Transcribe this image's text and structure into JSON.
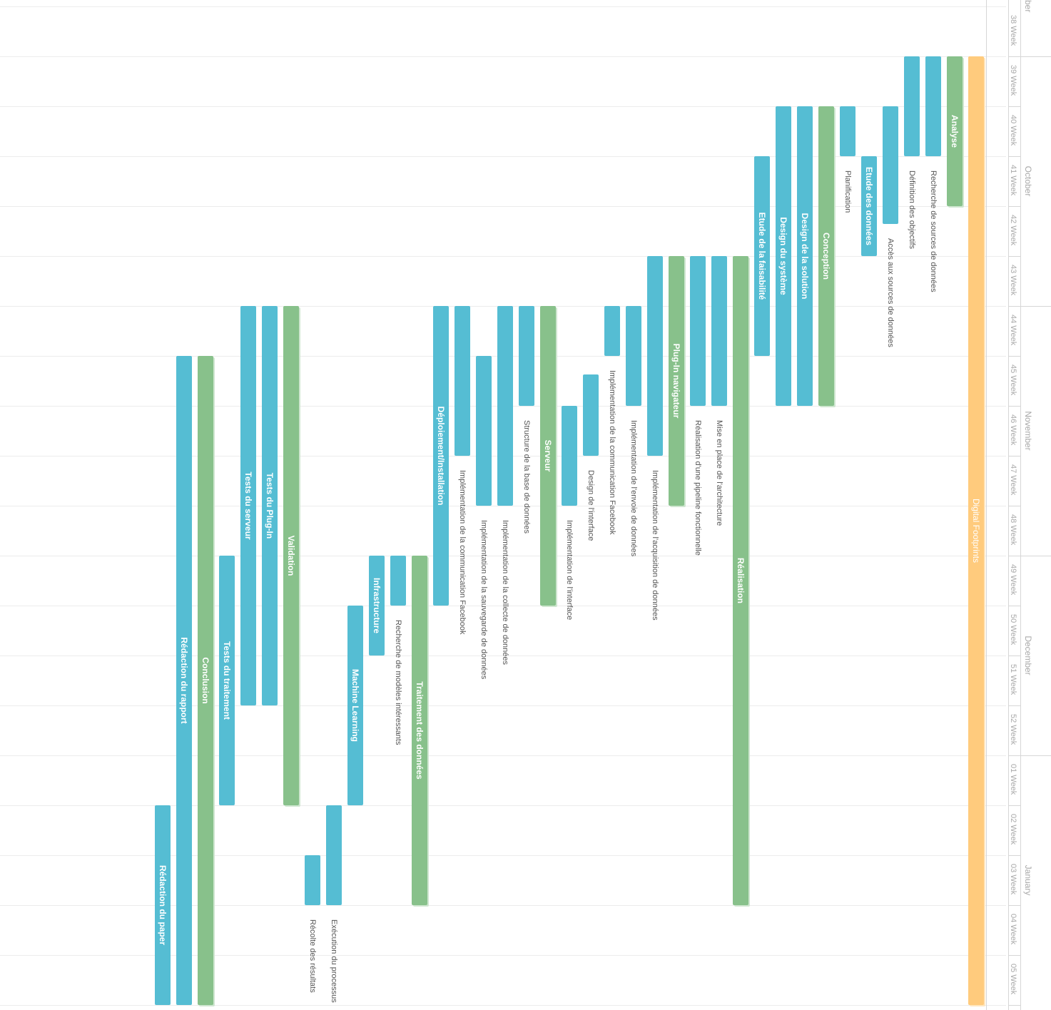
{
  "chart_data": {
    "type": "gantt",
    "project": {
      "label": "Digital Footprints",
      "start": 1,
      "end": 20
    },
    "weeks": [
      "38 Week",
      "39 Week",
      "40 Week",
      "41 Week",
      "42 Week",
      "43 Week",
      "44 Week",
      "45 Week",
      "46 Week",
      "47 Week",
      "48 Week",
      "49 Week",
      "50 Week",
      "51 Week",
      "52 Week",
      "01 Week",
      "02 Week",
      "03 Week",
      "04 Week",
      "05 Week"
    ],
    "months": [
      {
        "label": "ber",
        "start": 0,
        "end": 0.3
      },
      {
        "label": "October",
        "start": 1,
        "end": 6
      },
      {
        "label": "November",
        "start": 6,
        "end": 11
      },
      {
        "label": "December",
        "start": 11,
        "end": 15
      },
      {
        "label": "January",
        "start": 15,
        "end": 20
      }
    ],
    "tasks": [
      {
        "label": "Analyse",
        "type": "group",
        "start": 1,
        "end": 4,
        "inside": true
      },
      {
        "label": "Recherche de sources de données",
        "type": "task",
        "start": 1,
        "end": 3,
        "inside": false
      },
      {
        "label": "Définition des objectifs",
        "type": "task",
        "start": 1,
        "end": 3,
        "inside": false
      },
      {
        "label": "Accès aux sources de données",
        "type": "task",
        "start": 2,
        "end": 4.35,
        "inside": false
      },
      {
        "label": "Etude des données",
        "type": "task",
        "start": 3,
        "end": 5,
        "inside": true
      },
      {
        "label": "Planification",
        "type": "task",
        "start": 2,
        "end": 3,
        "inside": false
      },
      {
        "label": "Conception",
        "type": "group",
        "start": 2,
        "end": 8,
        "inside": true
      },
      {
        "label": "Design de la solution",
        "type": "task",
        "start": 2,
        "end": 8,
        "inside": true
      },
      {
        "label": "Design du système",
        "type": "task",
        "start": 2,
        "end": 8,
        "inside": true
      },
      {
        "label": "Etude de la faisabilité",
        "type": "task",
        "start": 3,
        "end": 7,
        "inside": true
      },
      {
        "label": "Réalisation",
        "type": "group",
        "start": 5,
        "end": 18,
        "inside": true
      },
      {
        "label": "Mise en place de l'architecture",
        "type": "task",
        "start": 5,
        "end": 8,
        "inside": false
      },
      {
        "label": "Réalisation d'une pipeline fonctionnelle",
        "type": "task",
        "start": 5,
        "end": 8,
        "inside": false
      },
      {
        "label": "Plug-In navigateur",
        "type": "group",
        "start": 5,
        "end": 10,
        "inside": true
      },
      {
        "label": "Implémentation de l'acquisition de données",
        "type": "task",
        "start": 5,
        "end": 9,
        "inside": false
      },
      {
        "label": "Implémentation de l'envoie de données",
        "type": "task",
        "start": 6,
        "end": 8,
        "inside": false
      },
      {
        "label": "Implémentation de la communication Facebook",
        "type": "task",
        "start": 6,
        "end": 7,
        "inside": false
      },
      {
        "label": "Design de l'interface",
        "type": "task",
        "start": 7.37,
        "end": 9,
        "inside": false
      },
      {
        "label": "Implémentation de l'interface",
        "type": "task",
        "start": 8,
        "end": 10,
        "inside": false
      },
      {
        "label": "Serveur",
        "type": "group",
        "start": 6,
        "end": 12,
        "inside": true
      },
      {
        "label": "Structure de la base de données",
        "type": "task",
        "start": 6,
        "end": 8,
        "inside": false
      },
      {
        "label": "Implémentation de la collecte de données",
        "type": "task",
        "start": 6,
        "end": 10,
        "inside": false
      },
      {
        "label": "Implémentation de la sauvegarde de données",
        "type": "task",
        "start": 7,
        "end": 10,
        "inside": false
      },
      {
        "label": "Implémentation de la communication Facebook",
        "type": "task",
        "start": 6,
        "end": 9,
        "inside": false
      },
      {
        "label": "Déploiement/Installation",
        "type": "task",
        "start": 6,
        "end": 12,
        "inside": true
      },
      {
        "label": "Traitement des données",
        "type": "group",
        "start": 11,
        "end": 18,
        "inside": true
      },
      {
        "label": "Recherche de modèles intéressants",
        "type": "task",
        "start": 11,
        "end": 12,
        "inside": false
      },
      {
        "label": "Infrastructure",
        "type": "task",
        "start": 11,
        "end": 13,
        "inside": true
      },
      {
        "label": "Machine Learning",
        "type": "task",
        "start": 12,
        "end": 16,
        "inside": true
      },
      {
        "label": "Exécution du processus",
        "type": "task",
        "start": 16,
        "end": 18,
        "inside": false
      },
      {
        "label": "Récolte des résultats",
        "type": "task",
        "start": 17,
        "end": 18,
        "inside": false
      },
      {
        "label": "Validation",
        "type": "group",
        "start": 6,
        "end": 16,
        "inside": true
      },
      {
        "label": "Tests du Plug-In",
        "type": "task",
        "start": 6,
        "end": 14,
        "inside": true
      },
      {
        "label": "Tests du serveur",
        "type": "task",
        "start": 6,
        "end": 14,
        "inside": true
      },
      {
        "label": "Tests du traitement",
        "type": "task",
        "start": 11,
        "end": 16,
        "inside": true
      },
      {
        "label": "Conclusion",
        "type": "group",
        "start": 7,
        "end": 20,
        "inside": true
      },
      {
        "label": "Rédaction du rapport",
        "type": "task",
        "start": 7,
        "end": 20,
        "inside": true
      },
      {
        "label": "Rédaction du paper",
        "type": "task",
        "start": 16,
        "end": 20,
        "inside": true
      }
    ]
  },
  "colors": {
    "task": "#55bdd3",
    "group": "#88c18b",
    "project": "#ffcb7d",
    "axis_text": "#a8a8a8",
    "outside_label": "#555555",
    "grid": "#ececec"
  }
}
